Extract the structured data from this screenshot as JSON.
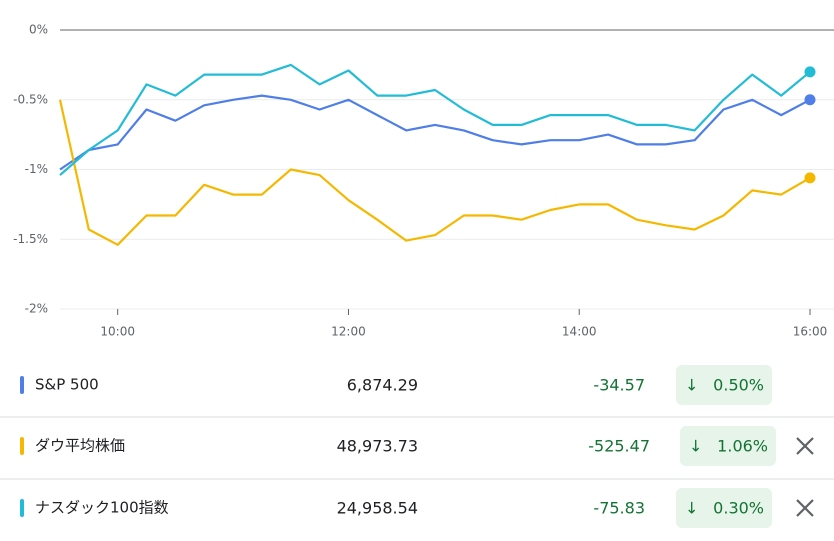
{
  "chart_data": {
    "type": "line",
    "x": [
      9.5,
      9.75,
      10,
      10.25,
      10.5,
      10.75,
      11,
      11.25,
      11.5,
      11.75,
      12,
      12.25,
      12.5,
      12.75,
      13,
      13.25,
      13.5,
      13.75,
      14,
      14.25,
      14.5,
      14.75,
      15,
      15.25,
      15.5,
      15.75,
      16
    ],
    "xlim": [
      9.5,
      16
    ],
    "xticks": [
      {
        "value": 10,
        "label": "10:00"
      },
      {
        "value": 12,
        "label": "12:00"
      },
      {
        "value": 14,
        "label": "14:00"
      },
      {
        "value": 16,
        "label": "16:00"
      }
    ],
    "ylim": [
      -2,
      0
    ],
    "yticks": [
      {
        "value": 0,
        "label": "0%"
      },
      {
        "value": -0.5,
        "label": "-0.5%"
      },
      {
        "value": -1,
        "label": "-1%"
      },
      {
        "value": -1.5,
        "label": "-1.5%"
      },
      {
        "value": -2,
        "label": "-2%"
      }
    ],
    "grid": true,
    "series": [
      {
        "name": "S&P 500",
        "color": "#4f7ee8",
        "values": [
          -1.0,
          -0.86,
          -0.82,
          -0.57,
          -0.65,
          -0.54,
          -0.5,
          -0.47,
          -0.5,
          -0.57,
          -0.5,
          -0.61,
          -0.72,
          -0.68,
          -0.72,
          -0.79,
          -0.82,
          -0.79,
          -0.79,
          -0.75,
          -0.82,
          -0.82,
          -0.79,
          -0.57,
          -0.5,
          -0.61,
          -0.5
        ]
      },
      {
        "name": "ダウ平均株価",
        "color": "#f5b800",
        "values": [
          -0.5,
          -1.43,
          -1.54,
          -1.33,
          -1.33,
          -1.11,
          -1.18,
          -1.18,
          -1.0,
          -1.04,
          -1.22,
          -1.36,
          -1.51,
          -1.47,
          -1.33,
          -1.33,
          -1.36,
          -1.29,
          -1.25,
          -1.25,
          -1.36,
          -1.4,
          -1.43,
          -1.33,
          -1.15,
          -1.18,
          -1.06
        ]
      },
      {
        "name": "ナスダック100指数",
        "color": "#22bcd6",
        "values": [
          -1.04,
          -0.86,
          -0.72,
          -0.39,
          -0.47,
          -0.32,
          -0.32,
          -0.32,
          -0.25,
          -0.39,
          -0.29,
          -0.47,
          -0.47,
          -0.43,
          -0.57,
          -0.68,
          -0.68,
          -0.61,
          -0.61,
          -0.61,
          -0.68,
          -0.68,
          -0.72,
          -0.5,
          -0.32,
          -0.47,
          -0.3
        ]
      }
    ]
  },
  "table": {
    "rows": [
      {
        "name": "S&P 500",
        "price": "6,874.29",
        "change": "-34.57",
        "percent": "0.50%"
      },
      {
        "name": "ダウ平均株価",
        "price": "48,973.73",
        "change": "-525.47",
        "percent": "1.06%"
      },
      {
        "name": "ナスダック100指数",
        "price": "24,958.54",
        "change": "-75.83",
        "percent": "0.30%"
      }
    ]
  }
}
